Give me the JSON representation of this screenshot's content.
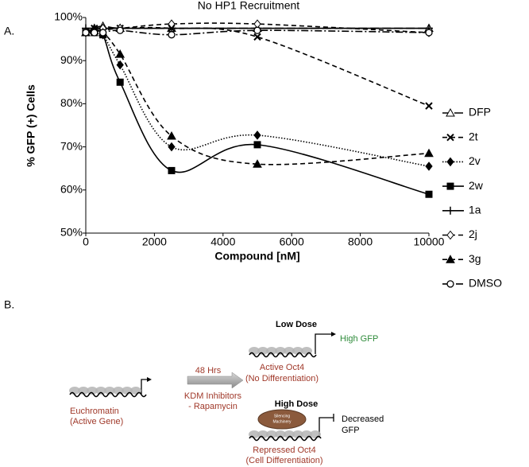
{
  "chart_data": {
    "type": "line",
    "title": "No HP1 Recruitment",
    "panel_label": "A.",
    "x_label": "Compound [nM]",
    "y_label": "% GFP (+) Cells",
    "x": [
      0,
      250,
      500,
      1000,
      2500,
      5000,
      10000
    ],
    "xlim": [
      0,
      10000
    ],
    "xticks": [
      0,
      2000,
      4000,
      6000,
      8000,
      10000
    ],
    "ylim": [
      50,
      100
    ],
    "yticks": [
      {
        "value": 50,
        "label": "50%"
      },
      {
        "value": 60,
        "label": "60%"
      },
      {
        "value": 70,
        "label": "70%"
      },
      {
        "value": 80,
        "label": "80%"
      },
      {
        "value": 90,
        "label": "90%"
      },
      {
        "value": 100,
        "label": "100%"
      }
    ],
    "smooth": true,
    "legend": "right",
    "series": [
      {
        "name": "DFP",
        "color": "#000000",
        "marker": "triangle-open",
        "line_style": "longdash",
        "values": [
          96.5,
          97.5,
          98,
          97.5,
          97.5,
          97.5,
          97.5
        ]
      },
      {
        "name": "2t",
        "color": "#000000",
        "marker": "x",
        "line_style": "dashed",
        "values": [
          96.5,
          97.5,
          97,
          97.5,
          97.5,
          95.5,
          79.5
        ]
      },
      {
        "name": "2v",
        "color": "#000000",
        "marker": "diamond-filled",
        "line_style": "dotted",
        "values": [
          96.5,
          97,
          96,
          89,
          70,
          72.7,
          65.5
        ]
      },
      {
        "name": "2w",
        "color": "#000000",
        "marker": "square-filled",
        "line_style": "solid",
        "values": [
          96.5,
          96.5,
          96,
          85,
          64.5,
          70.5,
          59
        ]
      },
      {
        "name": "1a",
        "color": "#000000",
        "marker": "plus",
        "line_style": "solid",
        "values": [
          97.5,
          97.5,
          97.5,
          97.5,
          97.5,
          97.5,
          97.5
        ]
      },
      {
        "name": "2j",
        "color": "#000000",
        "marker": "diamond-open",
        "line_style": "dashed",
        "values": [
          96.5,
          97,
          97.5,
          97.5,
          98.5,
          98.5,
          96.5
        ]
      },
      {
        "name": "3g",
        "color": "#000000",
        "marker": "triangle-filled",
        "line_style": "dashed",
        "values": [
          96.5,
          97,
          96.5,
          91.5,
          72.5,
          66,
          68.5
        ]
      },
      {
        "name": "DMSO",
        "color": "#000000",
        "marker": "circle-open",
        "line_style": "dashdot",
        "values": [
          96.5,
          96.5,
          96.5,
          97,
          96,
          97,
          96.5
        ]
      }
    ]
  },
  "diagram": {
    "panel_label": "B.",
    "low_dose": "Low Dose",
    "high_gfp": "High GFP",
    "active_oct4": "Active Oct4",
    "no_differentiation": "(No Differentiation)",
    "euchromatin": "Euchromatin",
    "active_gene": "(Active Gene)",
    "hours": "48 Hrs",
    "inhibitors": "KDM Inhibitors",
    "rapamycin": "- Rapamycin",
    "high_dose": "High Dose",
    "silencing_1": "Silencing",
    "silencing_2": "Machinery",
    "decreased": "Decreased",
    "gfp": "GFP",
    "repressed_oct4": "Repressed Oct4",
    "cell_differentiation": "(Cell Differentiation)"
  }
}
